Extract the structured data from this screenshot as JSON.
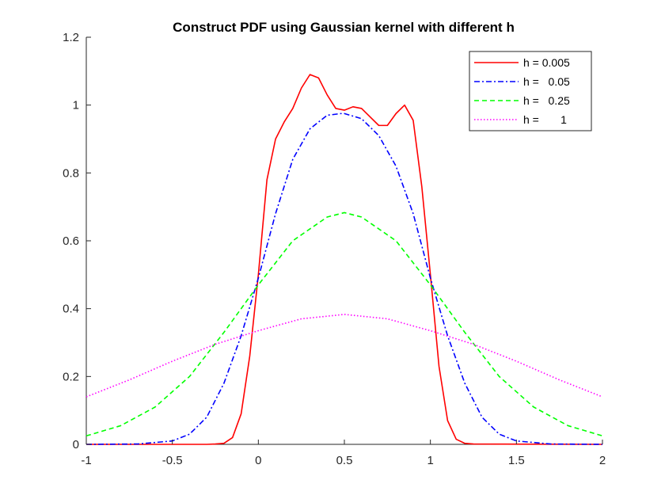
{
  "chart_data": {
    "type": "line",
    "title": "Construct PDF using Gaussian kernel with different h",
    "xlabel": "",
    "ylabel": "",
    "xlim": [
      -1,
      2
    ],
    "ylim": [
      0,
      1.2
    ],
    "xticks": [
      -1,
      -0.5,
      0,
      0.5,
      1,
      1.5,
      2
    ],
    "yticks": [
      0,
      0.2,
      0.4,
      0.6,
      0.8,
      1,
      1.2
    ],
    "xtick_labels": [
      "-1",
      "-0.5",
      "0",
      "0.5",
      "1",
      "1.5",
      "2"
    ],
    "ytick_labels": [
      "0",
      "0.2",
      "0.4",
      "0.6",
      "0.8",
      "1",
      "1.2"
    ],
    "grid": false,
    "legend_position": "top-right",
    "series": [
      {
        "name": "h = 0.005",
        "color": "#ff0000",
        "dash": "solid",
        "x": [
          -1,
          -0.3,
          -0.25,
          -0.2,
          -0.15,
          -0.1,
          -0.05,
          0,
          0.05,
          0.1,
          0.15,
          0.2,
          0.25,
          0.3,
          0.35,
          0.4,
          0.45,
          0.5,
          0.55,
          0.6,
          0.65,
          0.7,
          0.75,
          0.8,
          0.85,
          0.9,
          0.95,
          1.0,
          1.05,
          1.1,
          1.15,
          1.2,
          1.25,
          2
        ],
        "y": [
          0,
          0,
          0.001,
          0.003,
          0.02,
          0.09,
          0.26,
          0.5,
          0.78,
          0.9,
          0.95,
          0.99,
          1.05,
          1.09,
          1.08,
          1.03,
          0.99,
          0.985,
          0.995,
          0.99,
          0.965,
          0.94,
          0.94,
          0.975,
          1.0,
          0.955,
          0.76,
          0.5,
          0.23,
          0.07,
          0.015,
          0.003,
          0.001,
          0
        ]
      },
      {
        "name": "h =   0.05",
        "color": "#0000ff",
        "dash": "dashdot",
        "x": [
          -1,
          -0.7,
          -0.5,
          -0.4,
          -0.3,
          -0.2,
          -0.1,
          0,
          0.1,
          0.2,
          0.3,
          0.4,
          0.48,
          0.5,
          0.6,
          0.7,
          0.8,
          0.9,
          1.0,
          1.1,
          1.2,
          1.3,
          1.4,
          1.5,
          1.7,
          2
        ],
        "y": [
          0,
          0.001,
          0.01,
          0.03,
          0.08,
          0.18,
          0.32,
          0.49,
          0.68,
          0.84,
          0.93,
          0.97,
          0.975,
          0.975,
          0.96,
          0.91,
          0.82,
          0.68,
          0.49,
          0.32,
          0.18,
          0.08,
          0.03,
          0.01,
          0.001,
          0
        ]
      },
      {
        "name": "h =   0.25",
        "color": "#00ff00",
        "dash": "dashed",
        "x": [
          -1,
          -0.8,
          -0.6,
          -0.4,
          -0.2,
          0,
          0.2,
          0.4,
          0.5,
          0.6,
          0.8,
          1.0,
          1.2,
          1.4,
          1.6,
          1.8,
          2
        ],
        "y": [
          0.025,
          0.055,
          0.11,
          0.2,
          0.33,
          0.47,
          0.6,
          0.67,
          0.683,
          0.67,
          0.6,
          0.47,
          0.33,
          0.2,
          0.11,
          0.055,
          0.025
        ]
      },
      {
        "name": "h =       1",
        "color": "#ff00ff",
        "dash": "dotted",
        "x": [
          -1,
          -0.75,
          -0.5,
          -0.25,
          0,
          0.25,
          0.5,
          0.75,
          1.0,
          1.25,
          1.5,
          1.75,
          2
        ],
        "y": [
          0.14,
          0.19,
          0.245,
          0.295,
          0.335,
          0.37,
          0.383,
          0.37,
          0.335,
          0.295,
          0.245,
          0.19,
          0.14
        ]
      }
    ]
  }
}
